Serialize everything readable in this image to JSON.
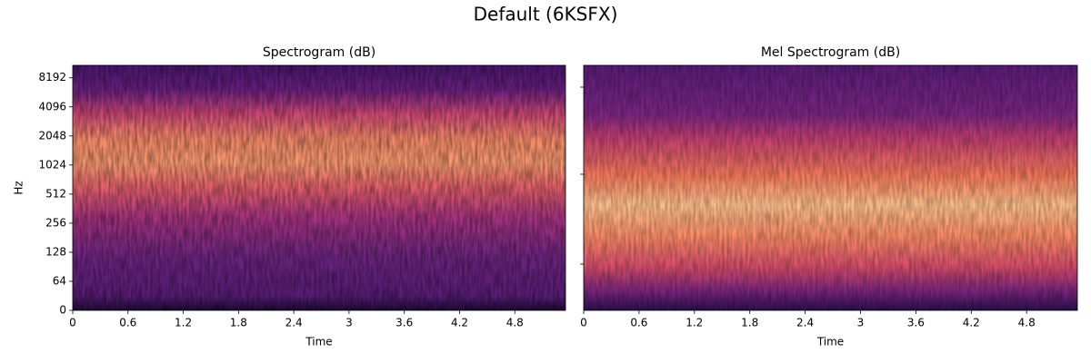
{
  "title": "Default (6KSFX)",
  "chart_data": [
    {
      "type": "heatmap",
      "title": "Spectrogram (dB)",
      "xlabel": "Time",
      "ylabel": "Hz",
      "xlim": [
        0,
        5.35
      ],
      "xticks": [
        0,
        0.6,
        1.2,
        1.8,
        2.4,
        3,
        3.6,
        4.2,
        4.8
      ],
      "ylim": [
        0,
        11025
      ],
      "yscale": "symlog",
      "yticks": [
        0,
        64,
        128,
        256,
        512,
        1024,
        2048,
        4096,
        8192
      ]
    },
    {
      "type": "heatmap",
      "title": "Mel Spectrogram (dB)",
      "xlabel": "Time",
      "xlim": [
        0,
        5.35
      ],
      "xticks": [
        0,
        0.6,
        1.2,
        1.8,
        2.4,
        3,
        3.6,
        4.2,
        4.8
      ]
    }
  ]
}
